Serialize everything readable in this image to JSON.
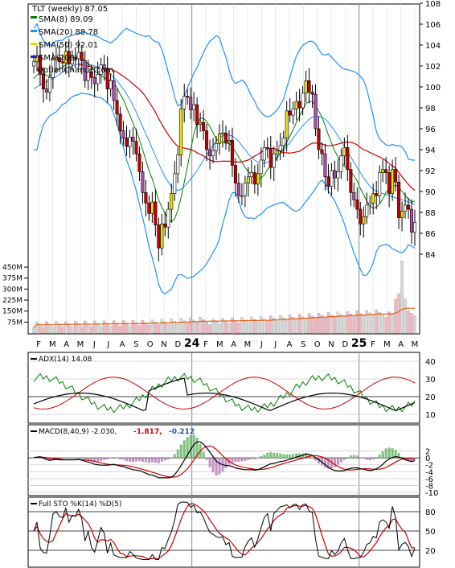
{
  "main": {
    "title": "TLT (weekly) 87.05",
    "legend": [
      {
        "label": "SMA(8) 89.09",
        "color": "#008000"
      },
      {
        "label": "SMA(20) 88.78",
        "color": "#1e90ff"
      },
      {
        "label": "SMA(50) 92.01",
        "color": "#e0e000"
      },
      {
        "label": "SMA(200)",
        "color": "#1f1fd0"
      }
    ],
    "watermark": "OptionChance.com",
    "y_ticks": [
      "108",
      "106",
      "104",
      "102",
      "100",
      "98",
      "96",
      "94",
      "92",
      "90",
      "88",
      "86",
      "84"
    ]
  },
  "volume": {
    "y_ticks": [
      "450M",
      "375M",
      "300M",
      "225M",
      "150M",
      "75M"
    ]
  },
  "x_axis": {
    "labels": [
      "F",
      "M",
      "A",
      "M",
      "J",
      "J",
      "A",
      "S",
      "O",
      "N",
      "D",
      "24",
      "F",
      "M",
      "A",
      "M",
      "J",
      "J",
      "A",
      "S",
      "O",
      "N",
      "D",
      "25",
      "F",
      "M",
      "A",
      "M"
    ]
  },
  "adx": {
    "title": "ADX(14) 14.08",
    "y_ticks": [
      "40",
      "30",
      "20",
      "10"
    ]
  },
  "macd": {
    "title": "MACD(8,40,9) -2.030,",
    "value2": "-1.817,",
    "value3": "-0.212",
    "y_ticks": [
      "2",
      "0",
      "-2",
      "-4",
      "-6",
      "-8",
      "-10"
    ]
  },
  "sto": {
    "title": "Full STO %K(14) %D(5)",
    "y_ticks": [
      "80",
      "50",
      "20"
    ]
  },
  "chart_data": {
    "type": "line",
    "x": [
      "2023-01-27",
      "2023-02-03",
      "2023-02-10",
      "2023-02-17",
      "2023-02-24",
      "2023-03-03",
      "2023-03-10",
      "2023-03-17",
      "2023-03-24",
      "2023-03-31",
      "2023-04-07",
      "2023-04-14",
      "2023-04-21",
      "2023-04-28",
      "2023-05-05",
      "2023-05-12",
      "2023-05-19",
      "2023-05-26",
      "2023-06-02",
      "2023-06-09",
      "2023-06-16",
      "2023-06-23",
      "2023-06-30",
      "2023-07-07",
      "2023-07-14",
      "2023-07-21",
      "2023-07-28",
      "2023-08-04",
      "2023-08-11",
      "2023-08-18",
      "2023-08-25",
      "2023-09-01",
      "2023-09-08",
      "2023-09-15",
      "2023-09-22",
      "2023-09-29",
      "2023-10-06",
      "2023-10-13",
      "2023-10-20",
      "2023-10-27",
      "2023-11-03",
      "2023-11-10",
      "2023-11-17",
      "2023-11-24",
      "2023-12-01",
      "2023-12-08",
      "2023-12-15",
      "2023-12-22",
      "2023-12-29",
      "2024-01-05",
      "2024-01-12",
      "2024-01-19",
      "2024-01-26",
      "2024-02-02",
      "2024-02-09",
      "2024-02-16",
      "2024-02-23",
      "2024-03-01",
      "2024-03-08",
      "2024-03-15",
      "2024-03-22",
      "2024-03-29",
      "2024-04-05",
      "2024-04-12",
      "2024-04-19",
      "2024-04-26",
      "2024-05-03",
      "2024-05-10",
      "2024-05-17",
      "2024-05-24",
      "2024-05-31",
      "2024-06-07",
      "2024-06-14",
      "2024-06-21",
      "2024-06-28",
      "2024-07-05",
      "2024-07-12",
      "2024-07-19",
      "2024-07-26",
      "2024-08-02",
      "2024-08-09",
      "2024-08-16",
      "2024-08-23",
      "2024-08-30",
      "2024-09-06",
      "2024-09-13",
      "2024-09-20",
      "2024-09-27",
      "2024-10-04",
      "2024-10-11",
      "2024-10-18",
      "2024-10-25",
      "2024-11-01",
      "2024-11-08",
      "2024-11-15",
      "2024-11-22",
      "2024-11-29",
      "2024-12-06",
      "2024-12-13",
      "2024-12-20",
      "2024-12-27",
      "2025-01-03",
      "2025-01-10",
      "2025-01-17",
      "2025-01-24",
      "2025-01-31",
      "2025-02-07",
      "2025-02-14",
      "2025-02-21",
      "2025-02-28",
      "2025-03-07",
      "2025-03-14",
      "2025-03-21",
      "2025-03-28",
      "2025-04-04",
      "2025-04-11",
      "2025-04-18",
      "2025-04-25",
      "2025-05-02",
      "2025-05-09"
    ],
    "series": [
      {
        "name": "TLT close",
        "values": [
          102.4,
          103.0,
          101.2,
          99.8,
          99.5,
          100.9,
          102.6,
          102.8,
          102.4,
          102.3,
          103.4,
          102.2,
          102.8,
          102.7,
          103.3,
          102.5,
          100.6,
          101.4,
          100.9,
          100.3,
          101.2,
          102.1,
          101.7,
          99.8,
          100.6,
          98.7,
          97.4,
          95.8,
          95.1,
          94.3,
          95.2,
          94.8,
          93.6,
          91.9,
          89.9,
          88.9,
          87.9,
          89.0,
          86.8,
          84.6,
          86.9,
          86.6,
          88.3,
          89.8,
          91.7,
          93.5,
          97.9,
          99.1,
          99.0,
          97.8,
          98.3,
          96.4,
          96.6,
          95.8,
          94.0,
          93.4,
          93.9,
          94.6,
          95.5,
          95.6,
          94.7,
          94.9,
          92.5,
          90.8,
          89.6,
          89.6,
          90.8,
          91.4,
          91.8,
          90.7,
          91.7,
          93.0,
          94.2,
          94.1,
          92.3,
          93.6,
          93.9,
          94.4,
          95.1,
          97.7,
          97.3,
          97.9,
          98.6,
          98.0,
          99.4,
          100.6,
          99.5,
          99.3,
          96.0,
          94.0,
          93.6,
          91.4,
          90.5,
          92.0,
          91.3,
          91.9,
          93.4,
          94.2,
          92.1,
          89.9,
          89.2,
          88.3,
          86.9,
          87.6,
          88.7,
          88.9,
          89.8,
          89.6,
          91.8,
          92.1,
          91.8,
          89.8,
          92.1,
          90.9,
          87.5,
          88.1,
          88.7,
          88.3,
          86.1,
          87.05
        ]
      },
      {
        "name": "SMA(8)",
        "values": [
          100.8,
          101.1,
          101.4,
          101.3,
          101.1,
          101.0,
          101.3,
          101.6,
          101.7,
          101.9,
          102.1,
          102.3,
          102.5,
          102.6,
          102.8,
          102.7,
          102.5,
          102.2,
          101.9,
          101.5,
          101.3,
          101.1,
          100.9,
          100.7,
          100.6,
          100.4,
          99.9,
          99.3,
          98.8,
          98.0,
          97.3,
          96.5,
          95.8,
          95.0,
          94.0,
          93.0,
          92.0,
          91.2,
          90.2,
          89.2,
          88.5,
          87.9,
          87.4,
          87.1,
          87.4,
          88.2,
          89.4,
          90.9,
          92.4,
          94.0,
          95.5,
          96.5,
          97.0,
          97.0,
          96.7,
          96.2,
          95.6,
          95.0,
          94.8,
          94.7,
          94.6,
          94.6,
          94.3,
          93.8,
          93.3,
          92.8,
          92.3,
          91.9,
          91.6,
          91.2,
          91.1,
          91.3,
          91.6,
          92.1,
          92.5,
          92.8,
          93.2,
          93.7,
          94.1,
          94.7,
          95.3,
          95.9,
          96.6,
          97.2,
          97.8,
          98.4,
          98.6,
          98.6,
          98.2,
          97.7,
          97.1,
          96.3,
          95.4,
          94.6,
          93.9,
          93.3,
          92.8,
          92.4,
          92.2,
          91.9,
          91.5,
          91.0,
          90.3,
          89.7,
          89.1,
          88.6,
          88.4,
          88.5,
          88.8,
          89.3,
          89.9,
          90.3,
          90.5,
          90.6,
          90.4,
          90.0,
          89.6,
          89.3,
          89.0,
          89.09
        ]
      },
      {
        "name": "SMA(20)",
        "values": [
          99.8,
          100.0,
          100.2,
          100.4,
          100.5,
          100.6,
          100.8,
          101.0,
          101.2,
          101.4,
          101.6,
          101.8,
          102.0,
          102.1,
          102.2,
          102.3,
          102.3,
          102.2,
          102.1,
          102.0,
          101.9,
          101.8,
          101.6,
          101.4,
          101.2,
          100.9,
          100.6,
          100.2,
          99.8,
          99.3,
          98.8,
          98.2,
          97.6,
          96.9,
          96.2,
          95.5,
          94.8,
          94.1,
          93.4,
          92.7,
          92.0,
          91.4,
          90.9,
          90.5,
          90.2,
          90.1,
          90.2,
          90.5,
          90.8,
          91.2,
          91.6,
          92.0,
          92.5,
          93.0,
          93.5,
          94.0,
          94.4,
          94.8,
          95.1,
          95.3,
          95.4,
          95.4,
          95.3,
          95.1,
          94.8,
          94.4,
          94.0,
          93.6,
          93.3,
          93.0,
          92.8,
          92.7,
          92.7,
          92.8,
          92.9,
          93.1,
          93.3,
          93.6,
          93.9,
          94.3,
          94.7,
          95.1,
          95.5,
          95.9,
          96.3,
          96.6,
          96.9,
          97.1,
          97.2,
          97.2,
          97.1,
          96.9,
          96.6,
          96.2,
          95.8,
          95.3,
          94.8,
          94.3,
          93.8,
          93.3,
          92.8,
          92.3,
          91.8,
          91.3,
          90.9,
          90.5,
          90.2,
          90.0,
          89.9,
          89.8,
          89.7,
          89.6,
          89.5,
          89.4,
          89.3,
          89.2,
          89.1,
          89.0,
          88.9,
          88.78
        ]
      },
      {
        "name": "SMA(50)",
        "values": [
          null,
          null,
          null,
          null,
          null,
          null,
          null,
          null,
          null,
          null,
          null,
          null,
          null,
          null,
          null,
          null,
          null,
          null,
          null,
          null,
          null,
          null,
          null,
          null,
          null,
          null,
          null,
          null,
          null,
          null,
          null,
          null,
          null,
          null,
          null,
          null,
          null,
          null,
          null,
          null,
          null,
          null,
          null,
          null,
          null,
          null,
          null,
          null,
          null,
          null,
          null,
          null,
          null,
          null,
          null,
          null,
          null,
          null,
          null,
          null,
          null,
          null,
          null,
          null,
          null,
          null,
          null,
          null,
          null,
          null,
          null,
          null,
          null,
          null,
          null,
          null,
          null,
          null,
          null,
          null,
          null,
          null,
          null,
          null,
          null,
          null,
          null,
          null,
          null,
          null,
          null,
          null,
          null,
          null,
          null,
          null,
          null,
          null,
          null,
          null,
          null,
          null,
          null,
          null,
          null,
          null,
          null,
          null,
          null,
          null,
          null,
          null,
          null,
          null,
          null,
          null,
          null,
          null,
          null,
          92.01
        ]
      }
    ],
    "price_range": [
      82,
      110
    ],
    "volume_range_M": [
      0,
      450
    ],
    "adx_range": [
      5,
      45
    ],
    "macd_range": [
      -11,
      4
    ],
    "sto_range": [
      0,
      100
    ],
    "grid": true
  }
}
